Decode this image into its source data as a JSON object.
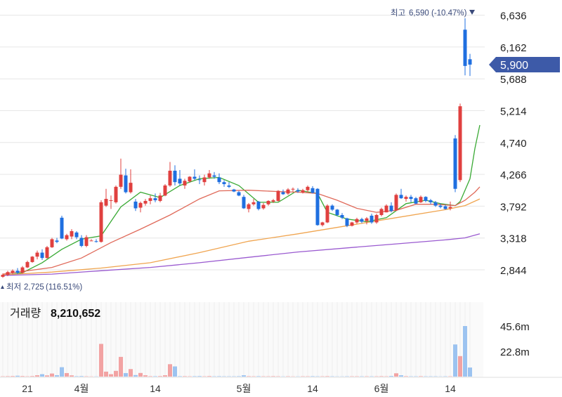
{
  "colors": {
    "up": "#e0403f",
    "down": "#1f6fe0",
    "vol_up": "#f2a3a3",
    "vol_down": "#9cc3f0",
    "ma5": "#3aaa35",
    "ma20": "#e06a5a",
    "ma60": "#f0a550",
    "ma120": "#9a5ad0",
    "price_tag": "#3d5aa8",
    "grid": "#e6e6e6"
  },
  "annotations": {
    "high_label": "최고",
    "high_value": "6,590",
    "high_pct": "(-10.47%)",
    "low_label": "최저",
    "low_value": "2,725",
    "low_pct": "(116.51%)",
    "current_price": "5,900"
  },
  "volume_panel": {
    "label": "거래량",
    "value": "8,210,652",
    "tick_labels": [
      "45.6m",
      "22.8m"
    ]
  },
  "chart_data": {
    "type": "candlestick",
    "y_ticks": [
      2844,
      3318,
      3792,
      4266,
      4740,
      5214,
      5688,
      6162,
      6636
    ],
    "y_tick_labels": [
      "2,844",
      "3,318",
      "3,792",
      "4,266",
      "4,740",
      "5,214",
      "5,688",
      "6,162",
      "6,636"
    ],
    "ylim": [
      2650,
      6780
    ],
    "x_tick_labels": [
      "21",
      "4월",
      "14",
      "5월",
      "14",
      "6월",
      "14"
    ],
    "x_tick_index": [
      5,
      16,
      31,
      49,
      63,
      77,
      91
    ],
    "candles": [
      [
        2740,
        2790,
        2725,
        2770
      ],
      [
        2770,
        2830,
        2750,
        2810
      ],
      [
        2800,
        2850,
        2780,
        2830
      ],
      [
        2830,
        2870,
        2780,
        2800
      ],
      [
        2800,
        2900,
        2790,
        2880
      ],
      [
        2880,
        2980,
        2870,
        2960
      ],
      [
        2960,
        3050,
        2950,
        3040
      ],
      [
        3040,
        3130,
        3000,
        3100
      ],
      [
        3100,
        3150,
        2990,
        3020
      ],
      [
        3020,
        3200,
        3010,
        3180
      ],
      [
        3180,
        3320,
        3170,
        3300
      ],
      [
        3280,
        3320,
        3240,
        3260
      ],
      [
        3620,
        3650,
        3300,
        3310
      ],
      [
        3300,
        3380,
        3280,
        3360
      ],
      [
        3340,
        3450,
        3300,
        3420
      ],
      [
        3400,
        3420,
        3300,
        3330
      ],
      [
        3320,
        3360,
        3180,
        3200
      ],
      [
        3200,
        3360,
        3180,
        3330
      ],
      [
        3280,
        3300,
        3280,
        3280
      ],
      [
        3270,
        3300,
        3250,
        3260
      ],
      [
        3260,
        3880,
        3250,
        3850
      ],
      [
        3800,
        4050,
        3780,
        3900
      ],
      [
        3880,
        3950,
        3750,
        3880
      ],
      [
        3850,
        4100,
        3830,
        4080
      ],
      [
        4080,
        4500,
        4050,
        4260
      ],
      [
        4250,
        4350,
        3980,
        4000
      ],
      [
        4000,
        4340,
        3980,
        4140
      ],
      [
        3860,
        3900,
        3720,
        3760
      ],
      [
        3770,
        3860,
        3700,
        3840
      ],
      [
        3830,
        3900,
        3800,
        3870
      ],
      [
        3870,
        3950,
        3820,
        3910
      ],
      [
        3910,
        3980,
        3850,
        3880
      ],
      [
        3870,
        3990,
        3850,
        3950
      ],
      [
        3950,
        4120,
        3940,
        4100
      ],
      [
        4100,
        4450,
        4080,
        4320
      ],
      [
        4320,
        4400,
        4100,
        4150
      ],
      [
        4200,
        4330,
        4100,
        4130
      ],
      [
        4100,
        4200,
        4050,
        4170
      ],
      [
        4160,
        4240,
        4140,
        4230
      ],
      [
        4230,
        4340,
        4180,
        4200
      ],
      [
        4190,
        4250,
        4120,
        4180
      ],
      [
        4150,
        4260,
        4100,
        4220
      ],
      [
        4220,
        4330,
        4200,
        4280
      ],
      [
        4250,
        4300,
        4200,
        4230
      ],
      [
        4220,
        4280,
        4120,
        4150
      ],
      [
        4150,
        4180,
        4080,
        4120
      ],
      [
        4100,
        4150,
        4060,
        4080
      ],
      [
        4040,
        4050,
        4000,
        4010
      ],
      [
        4000,
        4020,
        3940,
        3950
      ],
      [
        3930,
        3960,
        3750,
        3760
      ],
      [
        3750,
        3840,
        3700,
        3820
      ],
      [
        3820,
        3900,
        3800,
        3850
      ],
      [
        3860,
        3870,
        3730,
        3750
      ],
      [
        3760,
        3840,
        3740,
        3810
      ],
      [
        3820,
        3880,
        3800,
        3870
      ],
      [
        3860,
        3900,
        3840,
        3880
      ],
      [
        3870,
        4030,
        3860,
        4020
      ],
      [
        4000,
        4040,
        3960,
        3970
      ],
      [
        3980,
        4060,
        3960,
        4040
      ],
      [
        4040,
        4070,
        4010,
        4050
      ],
      [
        4030,
        4060,
        3990,
        4010
      ],
      [
        4000,
        4050,
        3980,
        4030
      ],
      [
        4030,
        4100,
        4000,
        4080
      ],
      [
        4060,
        4090,
        3980,
        3990
      ],
      [
        4050,
        4060,
        3500,
        3510
      ],
      [
        3510,
        3560,
        3490,
        3550
      ],
      [
        3550,
        3820,
        3540,
        3800
      ],
      [
        3800,
        3820,
        3720,
        3740
      ],
      [
        3740,
        3750,
        3640,
        3660
      ],
      [
        3660,
        3690,
        3600,
        3620
      ],
      [
        3610,
        3620,
        3480,
        3500
      ],
      [
        3500,
        3560,
        3490,
        3550
      ],
      [
        3550,
        3620,
        3530,
        3600
      ],
      [
        3600,
        3620,
        3540,
        3560
      ],
      [
        3570,
        3630,
        3520,
        3610
      ],
      [
        3650,
        3680,
        3530,
        3550
      ],
      [
        3550,
        3680,
        3530,
        3660
      ],
      [
        3660,
        3770,
        3640,
        3750
      ],
      [
        3700,
        3820,
        3700,
        3800
      ],
      [
        3800,
        3850,
        3700,
        3720
      ],
      [
        3730,
        3980,
        3720,
        3960
      ],
      [
        3960,
        4050,
        3900,
        3910
      ],
      [
        3900,
        3950,
        3860,
        3930
      ],
      [
        3930,
        3960,
        3850,
        3900
      ],
      [
        3910,
        3930,
        3820,
        3830
      ],
      [
        3850,
        3950,
        3840,
        3930
      ],
      [
        3930,
        3940,
        3850,
        3870
      ],
      [
        3880,
        3900,
        3820,
        3850
      ],
      [
        3850,
        3870,
        3780,
        3800
      ],
      [
        3800,
        3830,
        3760,
        3780
      ],
      [
        3790,
        3810,
        3740,
        3750
      ],
      [
        3760,
        3860,
        3730,
        3780
      ],
      [
        4800,
        4850,
        4000,
        4050
      ],
      [
        4180,
        5320,
        4150,
        5280
      ],
      [
        6420,
        6590,
        5740,
        5880
      ],
      [
        5980,
        6060,
        5730,
        5900
      ]
    ],
    "volume": [
      0.3,
      0.4,
      0.5,
      0.8,
      0.5,
      0.3,
      0.5,
      1.2,
      2.2,
      1.1,
      2.8,
      1.3,
      8.5,
      3.2,
      1.1,
      0.4,
      0.5,
      0.3,
      0.2,
      0.2,
      29.5,
      4.5,
      2.2,
      5.2,
      17.8,
      3.2,
      6.8,
      1.4,
      3.3,
      1.2,
      0.4,
      0.4,
      0.5,
      1.2,
      11.2,
      9.2,
      0.4,
      0.4,
      0.3,
      0.4,
      0.5,
      0.3,
      0.5,
      0.3,
      0.4,
      0.3,
      0.3,
      0.3,
      0.4,
      1.2,
      0.4,
      0.3,
      0.4,
      0.3,
      0.3,
      0.4,
      0.3,
      0.2,
      0.3,
      0.2,
      0.2,
      0.3,
      0.3,
      0.4,
      0.3,
      0.3,
      0.4,
      0.3,
      0.2,
      0.2,
      0.3,
      0.3,
      0.3,
      0.3,
      0.3,
      0.3,
      0.3,
      0.4,
      0.3,
      0.6,
      3.0,
      1.2,
      0.4,
      0.3,
      0.3,
      0.4,
      0.3,
      0.3,
      0.3,
      0.2,
      0.3,
      0.3,
      29.0,
      18.5,
      45.6,
      8.2
    ],
    "volume_ylim": [
      0,
      52
    ],
    "series": [
      {
        "key": "ma5",
        "points": [
          [
            0,
            2760
          ],
          [
            4,
            2800
          ],
          [
            8,
            2950
          ],
          [
            12,
            3150
          ],
          [
            16,
            3300
          ],
          [
            20,
            3350
          ],
          [
            24,
            3780
          ],
          [
            28,
            4000
          ],
          [
            32,
            3920
          ],
          [
            36,
            4100
          ],
          [
            40,
            4200
          ],
          [
            44,
            4220
          ],
          [
            48,
            4100
          ],
          [
            52,
            3850
          ],
          [
            56,
            3850
          ],
          [
            60,
            4030
          ],
          [
            64,
            3980
          ],
          [
            66,
            3700
          ],
          [
            70,
            3600
          ],
          [
            74,
            3560
          ],
          [
            78,
            3620
          ],
          [
            82,
            3830
          ],
          [
            86,
            3880
          ],
          [
            89,
            3830
          ],
          [
            92,
            3800
          ],
          [
            93,
            3860
          ],
          [
            95,
            4200
          ],
          [
            96,
            4650
          ],
          [
            97,
            5000
          ]
        ]
      },
      {
        "key": "ma20",
        "points": [
          [
            0,
            2780
          ],
          [
            10,
            2880
          ],
          [
            16,
            3020
          ],
          [
            22,
            3250
          ],
          [
            28,
            3450
          ],
          [
            34,
            3660
          ],
          [
            40,
            3900
          ],
          [
            44,
            4020
          ],
          [
            50,
            4030
          ],
          [
            56,
            4010
          ],
          [
            60,
            4000
          ],
          [
            64,
            3980
          ],
          [
            68,
            3880
          ],
          [
            72,
            3760
          ],
          [
            76,
            3700
          ],
          [
            80,
            3730
          ],
          [
            84,
            3820
          ],
          [
            88,
            3820
          ],
          [
            92,
            3800
          ],
          [
            94,
            3880
          ],
          [
            96,
            4000
          ],
          [
            97,
            4080
          ]
        ]
      },
      {
        "key": "ma60",
        "points": [
          [
            0,
            2770
          ],
          [
            10,
            2810
          ],
          [
            20,
            2870
          ],
          [
            30,
            2950
          ],
          [
            40,
            3100
          ],
          [
            50,
            3270
          ],
          [
            60,
            3380
          ],
          [
            70,
            3500
          ],
          [
            80,
            3620
          ],
          [
            90,
            3740
          ],
          [
            94,
            3800
          ],
          [
            97,
            3900
          ]
        ]
      },
      {
        "key": "ma120",
        "points": [
          [
            0,
            2760
          ],
          [
            10,
            2780
          ],
          [
            20,
            2830
          ],
          [
            30,
            2880
          ],
          [
            40,
            2950
          ],
          [
            50,
            3030
          ],
          [
            60,
            3110
          ],
          [
            70,
            3170
          ],
          [
            80,
            3230
          ],
          [
            90,
            3290
          ],
          [
            94,
            3320
          ],
          [
            97,
            3380
          ]
        ]
      }
    ]
  }
}
